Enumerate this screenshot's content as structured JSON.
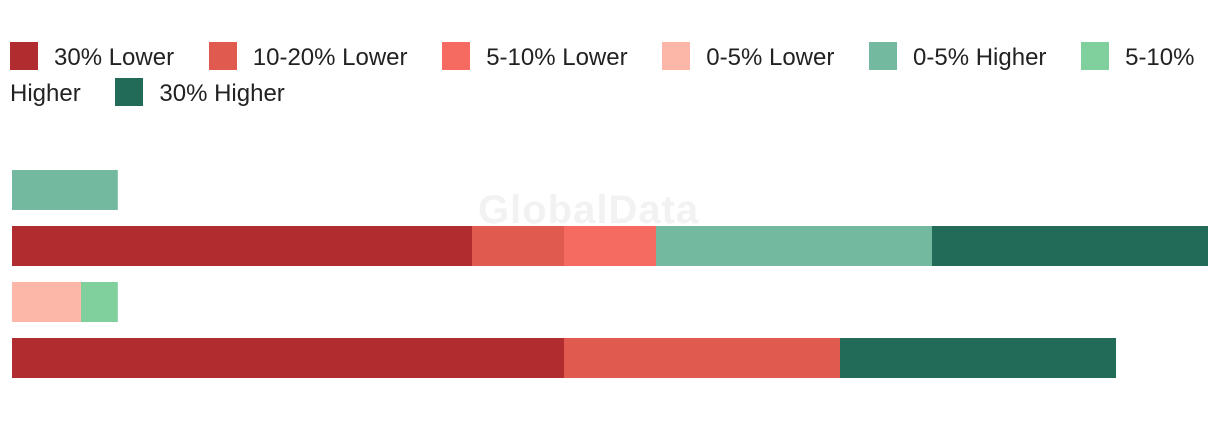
{
  "watermark": "GlobalData",
  "chart_data": {
    "type": "bar",
    "orientation": "horizontal",
    "stacked": true,
    "title": "",
    "xlabel": "",
    "ylabel": "",
    "xlim": [
      0,
      13
    ],
    "grid": false,
    "legend_position": "top",
    "categories": [
      "",
      "",
      "",
      ""
    ],
    "series": [
      {
        "name": "30% Lower",
        "color": "#b02c2f",
        "values": [
          0,
          5,
          0,
          6
        ]
      },
      {
        "name": "10-20% Lower",
        "color": "#e05a4f",
        "values": [
          0,
          1,
          0,
          3
        ]
      },
      {
        "name": "5-10% Lower",
        "color": "#f56b61",
        "values": [
          0,
          1,
          0,
          0
        ]
      },
      {
        "name": "0-5% Lower",
        "color": "#fdb7a8",
        "values": [
          0,
          0,
          0.75,
          0
        ]
      },
      {
        "name": "0-5% Higher",
        "color": "#72b9a0",
        "values": [
          1.15,
          3,
          0,
          0
        ]
      },
      {
        "name": "5-10% Higher",
        "color": "#80d09e",
        "values": [
          0,
          0,
          0.4,
          0
        ]
      },
      {
        "name": "30% Higher",
        "color": "#226b58",
        "values": [
          0,
          3,
          0,
          3
        ]
      }
    ]
  }
}
